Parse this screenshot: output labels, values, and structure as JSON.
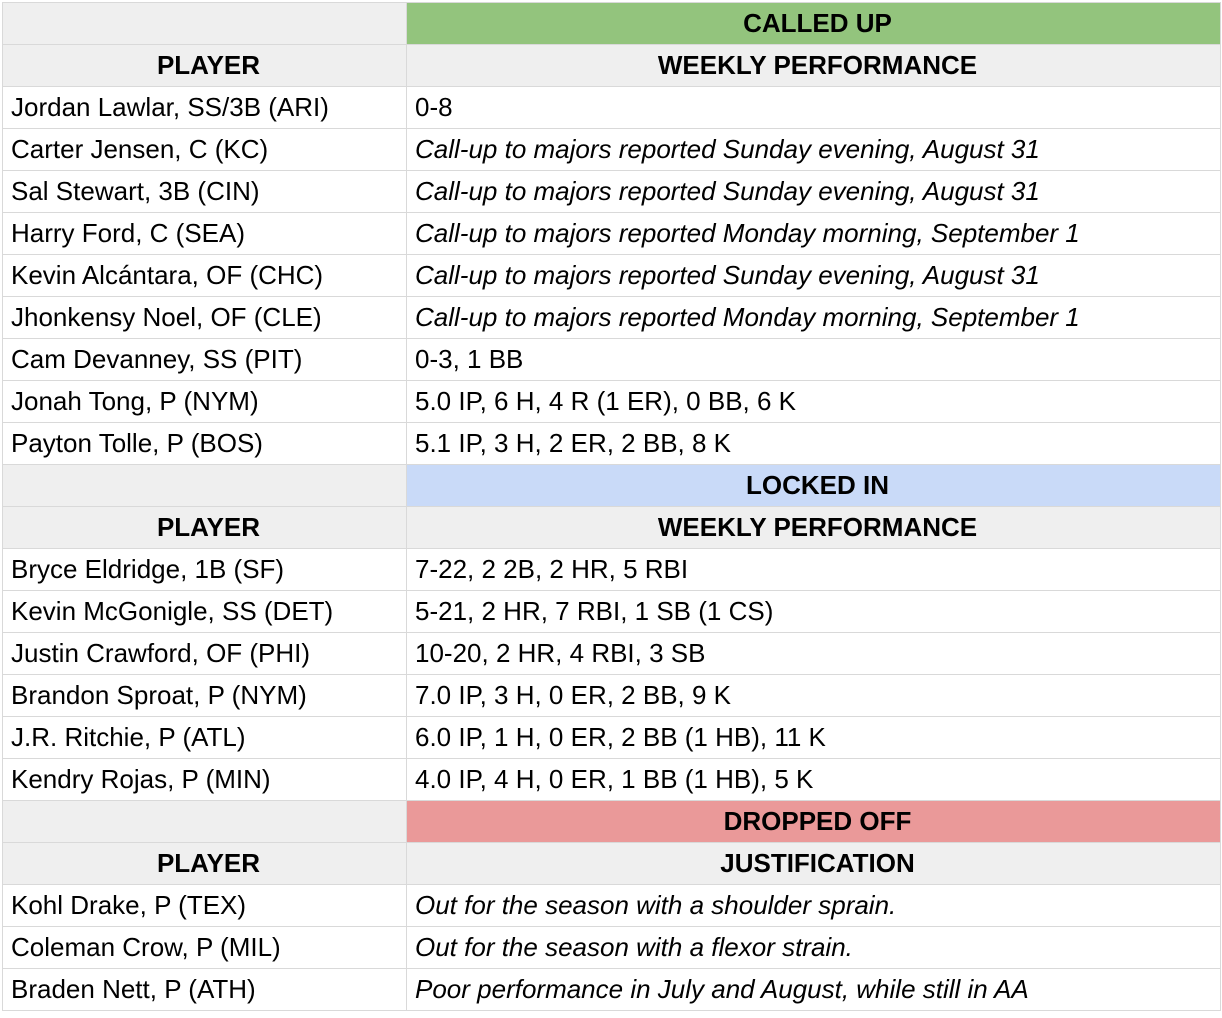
{
  "sections": [
    {
      "title": "CALLED UP",
      "color": "#93c47d",
      "header": {
        "player": "PLAYER",
        "detail": "WEEKLY PERFORMANCE"
      },
      "rows": [
        {
          "player": "Jordan Lawlar, SS/3B (ARI)",
          "detail": "0-8",
          "italic": false
        },
        {
          "player": "Carter Jensen, C (KC)",
          "detail": "Call-up to majors reported Sunday evening, August 31",
          "italic": true
        },
        {
          "player": "Sal Stewart, 3B (CIN)",
          "detail": "Call-up to majors reported Sunday evening, August 31",
          "italic": true
        },
        {
          "player": "Harry Ford, C (SEA)",
          "detail": "Call-up to majors reported Monday morning, September 1",
          "italic": true
        },
        {
          "player": "Kevin Alcántara, OF (CHC)",
          "detail": "Call-up to majors reported Sunday evening, August 31",
          "italic": true
        },
        {
          "player": "Jhonkensy Noel, OF (CLE)",
          "detail": "Call-up to majors reported Monday morning, September 1",
          "italic": true
        },
        {
          "player": "Cam Devanney, SS (PIT)",
          "detail": "0-3, 1 BB",
          "italic": false
        },
        {
          "player": "Jonah Tong, P (NYM)",
          "detail": "5.0 IP, 6 H, 4 R (1 ER), 0 BB, 6 K",
          "italic": false
        },
        {
          "player": "Payton Tolle, P (BOS)",
          "detail": "5.1 IP, 3 H, 2 ER, 2 BB, 8 K",
          "italic": false
        }
      ]
    },
    {
      "title": "LOCKED IN",
      "color": "#c9daf8",
      "header": {
        "player": "PLAYER",
        "detail": "WEEKLY PERFORMANCE"
      },
      "rows": [
        {
          "player": "Bryce Eldridge, 1B (SF)",
          "detail": "7-22, 2 2B, 2 HR, 5 RBI",
          "italic": false
        },
        {
          "player": "Kevin McGonigle, SS (DET)",
          "detail": "5-21, 2 HR, 7 RBI, 1 SB (1 CS)",
          "italic": false
        },
        {
          "player": "Justin Crawford, OF (PHI)",
          "detail": "10-20, 2 HR, 4 RBI, 3 SB",
          "italic": false
        },
        {
          "player": "Brandon Sproat, P (NYM)",
          "detail": "7.0 IP, 3 H, 0 ER, 2 BB, 9 K",
          "italic": false
        },
        {
          "player": "J.R. Ritchie, P (ATL)",
          "detail": "6.0 IP, 1 H, 0 ER, 2 BB (1 HB), 11 K",
          "italic": false
        },
        {
          "player": "Kendry Rojas, P (MIN)",
          "detail": "4.0 IP, 4 H, 0 ER, 1 BB (1 HB), 5 K",
          "italic": false
        }
      ]
    },
    {
      "title": "DROPPED OFF",
      "color": "#ea9999",
      "header": {
        "player": "PLAYER",
        "detail": "JUSTIFICATION"
      },
      "rows": [
        {
          "player": "Kohl Drake, P (TEX)",
          "detail": "Out for the season with a shoulder sprain.",
          "italic": true
        },
        {
          "player": "Coleman Crow, P (MIL)",
          "detail": "Out for the season with a flexor strain.",
          "italic": true
        },
        {
          "player": "Braden Nett, P (ATH)",
          "detail": "Poor performance in July and August, while still in AA",
          "italic": true
        }
      ]
    }
  ]
}
